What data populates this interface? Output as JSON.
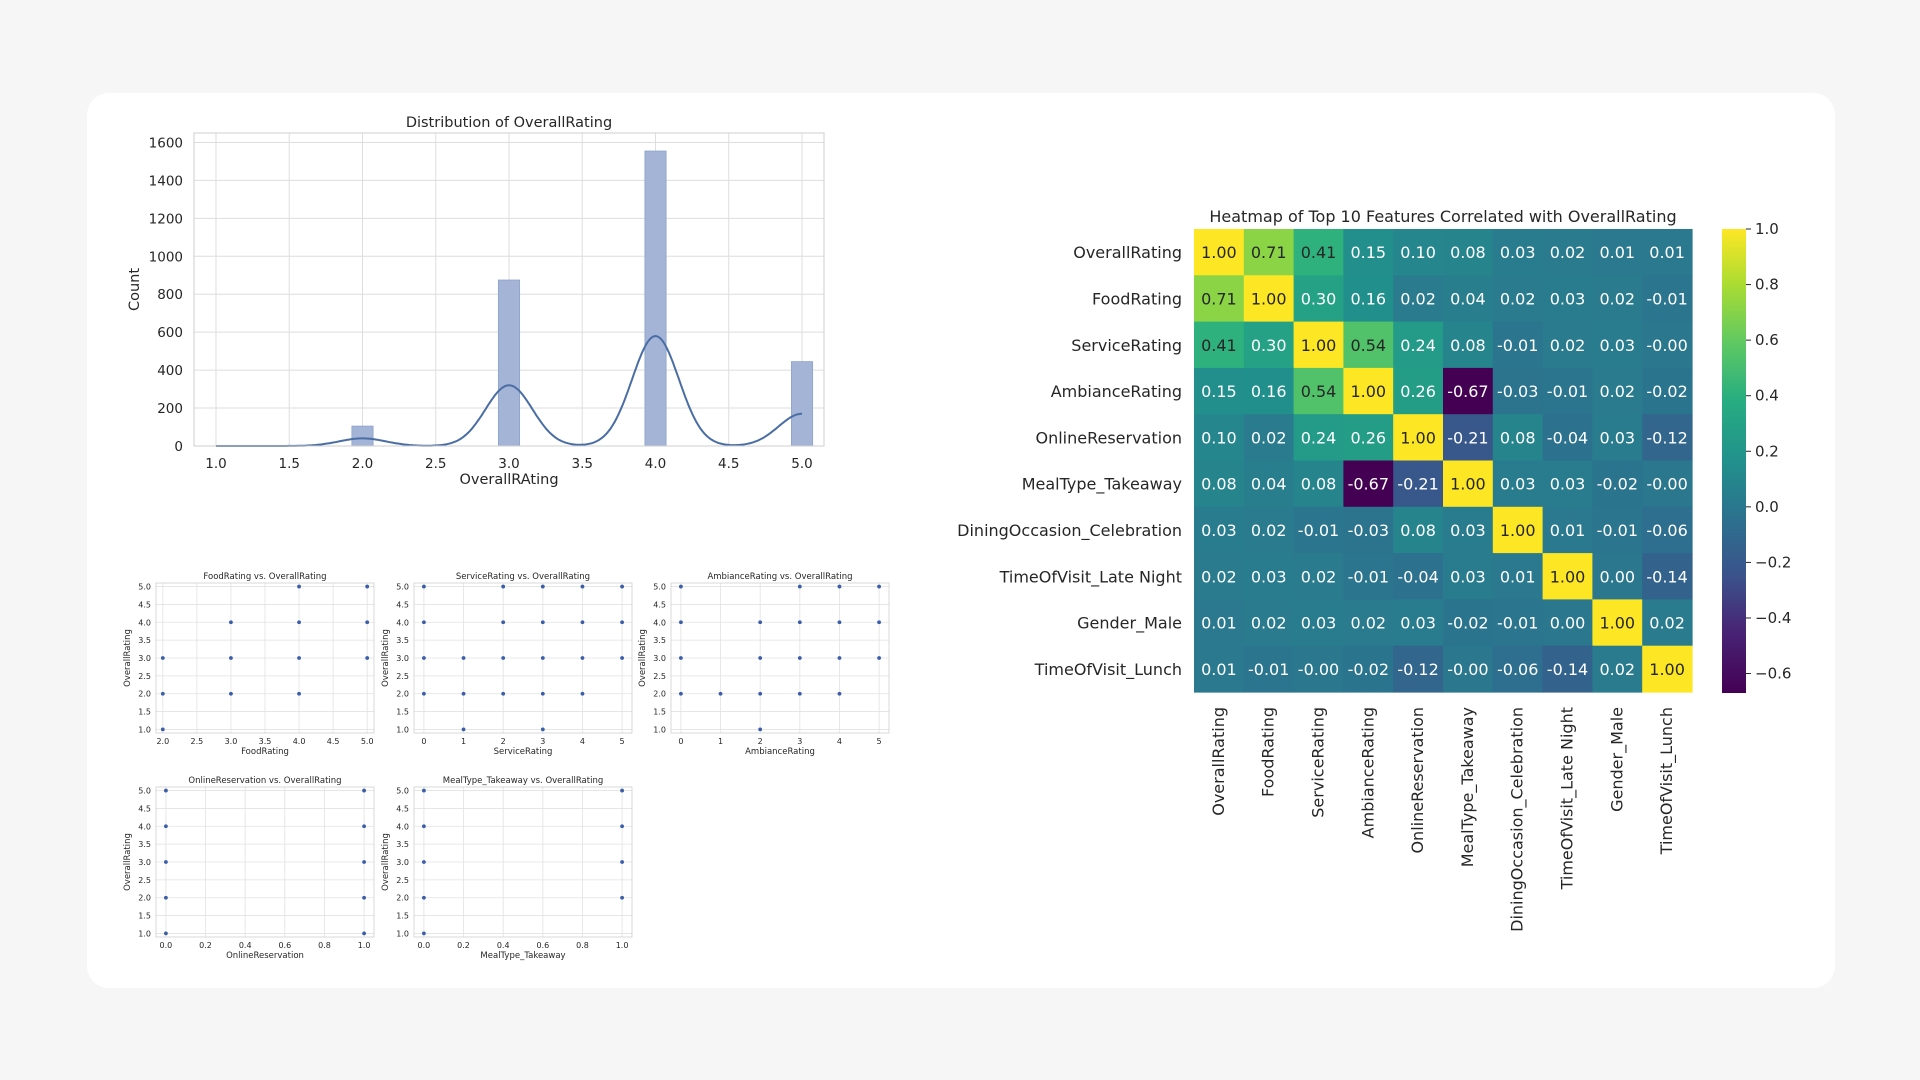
{
  "chart_data": [
    {
      "id": "hist",
      "type": "bar",
      "title": "Distribution of OverallRating",
      "xlabel": "OverallRAting",
      "ylabel": "Count",
      "xlim": [
        0.85,
        5.15
      ],
      "ylim": [
        0,
        1650
      ],
      "xticks": [
        1.0,
        1.5,
        2.0,
        2.5,
        3.0,
        3.5,
        4.0,
        4.5,
        5.0
      ],
      "yticks": [
        0,
        200,
        400,
        600,
        800,
        1000,
        1200,
        1400,
        1600
      ],
      "bars": [
        {
          "x": 2.0,
          "value": 105
        },
        {
          "x": 3.0,
          "value": 875
        },
        {
          "x": 4.0,
          "value": 1555
        },
        {
          "x": 5.0,
          "value": 445
        }
      ],
      "kde": {
        "peaks": [
          {
            "x": 2.0,
            "y": 40
          },
          {
            "x": 3.0,
            "y": 320
          },
          {
            "x": 4.0,
            "y": 580
          },
          {
            "x": 5.0,
            "y": 170
          }
        ],
        "sigma": 0.16
      }
    },
    {
      "id": "heatmap",
      "type": "heatmap",
      "title": "Heatmap of Top 10 Features Correlated with OverallRating",
      "labels": [
        "OverallRating",
        "FoodRating",
        "ServiceRating",
        "AmbianceRating",
        "OnlineReservation",
        "MealType_Takeaway",
        "DiningOccasion_Celebration",
        "TimeOfVisit_Late Night",
        "Gender_Male",
        "TimeOfVisit_Lunch"
      ],
      "matrix": [
        [
          1.0,
          0.71,
          0.41,
          0.15,
          0.1,
          0.08,
          0.03,
          0.02,
          0.01,
          0.01
        ],
        [
          0.71,
          1.0,
          0.3,
          0.16,
          0.02,
          0.04,
          0.02,
          0.03,
          0.02,
          -0.01
        ],
        [
          0.41,
          0.3,
          1.0,
          0.54,
          0.24,
          0.08,
          -0.01,
          0.02,
          0.03,
          -0.0
        ],
        [
          0.15,
          0.16,
          0.54,
          1.0,
          0.26,
          -0.67,
          -0.03,
          -0.01,
          0.02,
          -0.02
        ],
        [
          0.1,
          0.02,
          0.24,
          0.26,
          1.0,
          -0.21,
          0.08,
          -0.04,
          0.03,
          -0.12
        ],
        [
          0.08,
          0.04,
          0.08,
          -0.67,
          -0.21,
          1.0,
          0.03,
          0.03,
          -0.02,
          -0.0
        ],
        [
          0.03,
          0.02,
          -0.01,
          -0.03,
          0.08,
          0.03,
          1.0,
          0.01,
          -0.01,
          -0.06
        ],
        [
          0.02,
          0.03,
          0.02,
          -0.01,
          -0.04,
          0.03,
          0.01,
          1.0,
          0.0,
          -0.14
        ],
        [
          0.01,
          0.02,
          0.03,
          0.02,
          0.03,
          -0.02,
          -0.01,
          0.0,
          1.0,
          0.02
        ],
        [
          0.01,
          -0.01,
          -0.0,
          -0.02,
          -0.12,
          -0.0,
          -0.06,
          -0.14,
          0.02,
          1.0
        ]
      ],
      "vmin": -0.67,
      "vmax": 1.0,
      "colorbar_ticks": [
        1.0,
        0.8,
        0.6,
        0.4,
        0.2,
        0.0,
        -0.2,
        -0.4,
        -0.6
      ],
      "colorbar_tick_labels": [
        "1.0",
        "0.8",
        "0.6",
        "0.4",
        "0.2",
        "0.0",
        "−0.2",
        "−0.4",
        "−0.6"
      ]
    },
    {
      "id": "s1",
      "type": "scatter",
      "title": "FoodRating vs. OverallRating",
      "xlabel": "FoodRating",
      "ylabel": "OverallRating",
      "xlim": [
        1.9,
        5.1
      ],
      "ylim": [
        0.9,
        5.1
      ],
      "xticks": [
        "2.0",
        "2.5",
        "3.0",
        "3.5",
        "4.0",
        "4.5",
        "5.0"
      ],
      "yticks": [
        "1.0",
        "1.5",
        "2.0",
        "2.5",
        "3.0",
        "3.5",
        "4.0",
        "4.5",
        "5.0"
      ],
      "points": [
        [
          2,
          1
        ],
        [
          2,
          2
        ],
        [
          2,
          3
        ],
        [
          3,
          2
        ],
        [
          3,
          3
        ],
        [
          3,
          4
        ],
        [
          4,
          2
        ],
        [
          4,
          3
        ],
        [
          4,
          4
        ],
        [
          4,
          5
        ],
        [
          5,
          3
        ],
        [
          5,
          4
        ],
        [
          5,
          5
        ]
      ]
    },
    {
      "id": "s2",
      "type": "scatter",
      "title": "ServiceRating vs. OverallRating",
      "xlabel": "ServiceRating",
      "ylabel": "OverallRating",
      "xlim": [
        -0.25,
        5.25
      ],
      "ylim": [
        0.9,
        5.1
      ],
      "xticks": [
        "0",
        "1",
        "2",
        "3",
        "4",
        "5"
      ],
      "yticks": [
        "1.0",
        "1.5",
        "2.0",
        "2.5",
        "3.0",
        "3.5",
        "4.0",
        "4.5",
        "5.0"
      ],
      "points": [
        [
          0,
          2
        ],
        [
          0,
          3
        ],
        [
          0,
          4
        ],
        [
          0,
          5
        ],
        [
          1,
          1
        ],
        [
          1,
          2
        ],
        [
          1,
          3
        ],
        [
          2,
          2
        ],
        [
          2,
          3
        ],
        [
          2,
          4
        ],
        [
          2,
          5
        ],
        [
          3,
          1
        ],
        [
          3,
          2
        ],
        [
          3,
          3
        ],
        [
          3,
          4
        ],
        [
          3,
          5
        ],
        [
          4,
          2
        ],
        [
          4,
          3
        ],
        [
          4,
          4
        ],
        [
          4,
          5
        ],
        [
          5,
          3
        ],
        [
          5,
          4
        ],
        [
          5,
          5
        ]
      ]
    },
    {
      "id": "s3",
      "type": "scatter",
      "title": "AmbianceRating vs. OverallRating",
      "xlabel": "AmbianceRating",
      "ylabel": "OverallRating",
      "xlim": [
        -0.25,
        5.25
      ],
      "ylim": [
        0.9,
        5.1
      ],
      "xticks": [
        "0",
        "1",
        "2",
        "3",
        "4",
        "5"
      ],
      "yticks": [
        "1.0",
        "1.5",
        "2.0",
        "2.5",
        "3.0",
        "3.5",
        "4.0",
        "4.5",
        "5.0"
      ],
      "points": [
        [
          0,
          2
        ],
        [
          0,
          3
        ],
        [
          0,
          4
        ],
        [
          0,
          5
        ],
        [
          1,
          2
        ],
        [
          2,
          1
        ],
        [
          2,
          2
        ],
        [
          2,
          3
        ],
        [
          2,
          4
        ],
        [
          3,
          2
        ],
        [
          3,
          3
        ],
        [
          3,
          4
        ],
        [
          3,
          5
        ],
        [
          4,
          2
        ],
        [
          4,
          3
        ],
        [
          4,
          4
        ],
        [
          4,
          5
        ],
        [
          5,
          3
        ],
        [
          5,
          4
        ],
        [
          5,
          5
        ]
      ]
    },
    {
      "id": "s4",
      "type": "scatter",
      "title": "OnlineReservation vs. OverallRating",
      "xlabel": "OnlineReservation",
      "ylabel": "OverallRating",
      "xlim": [
        -0.05,
        1.05
      ],
      "ylim": [
        0.9,
        5.1
      ],
      "xticks": [
        "0.0",
        "0.2",
        "0.4",
        "0.6",
        "0.8",
        "1.0"
      ],
      "yticks": [
        "1.0",
        "1.5",
        "2.0",
        "2.5",
        "3.0",
        "3.5",
        "4.0",
        "4.5",
        "5.0"
      ],
      "points": [
        [
          0,
          1
        ],
        [
          0,
          2
        ],
        [
          0,
          3
        ],
        [
          0,
          4
        ],
        [
          0,
          5
        ],
        [
          1,
          1
        ],
        [
          1,
          2
        ],
        [
          1,
          3
        ],
        [
          1,
          4
        ],
        [
          1,
          5
        ]
      ]
    },
    {
      "id": "s5",
      "type": "scatter",
      "title": "MealType_Takeaway vs. OverallRating",
      "xlabel": "MealType_Takeaway",
      "ylabel": "OverallRating",
      "xlim": [
        -0.05,
        1.05
      ],
      "ylim": [
        0.9,
        5.1
      ],
      "xticks": [
        "0.0",
        "0.2",
        "0.4",
        "0.6",
        "0.8",
        "1.0"
      ],
      "yticks": [
        "1.0",
        "1.5",
        "2.0",
        "2.5",
        "3.0",
        "3.5",
        "4.0",
        "4.5",
        "5.0"
      ],
      "points": [
        [
          0,
          1
        ],
        [
          0,
          2
        ],
        [
          0,
          3
        ],
        [
          0,
          4
        ],
        [
          0,
          5
        ],
        [
          1,
          2
        ],
        [
          1,
          3
        ],
        [
          1,
          4
        ],
        [
          1,
          5
        ]
      ]
    }
  ]
}
